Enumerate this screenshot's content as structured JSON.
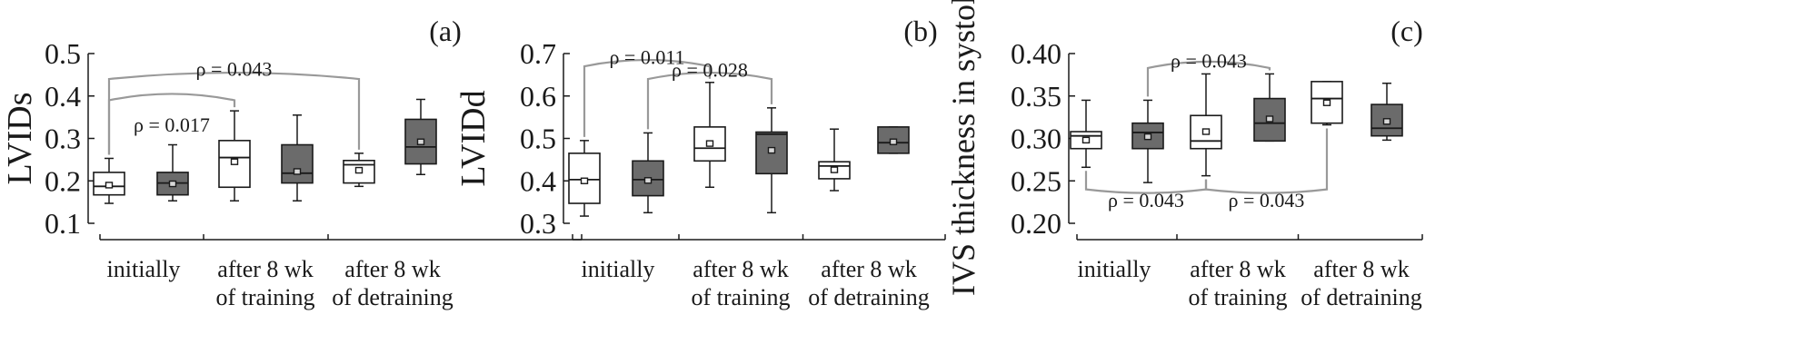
{
  "colors": {
    "open_box": "#ffffff",
    "filled_box": "#6b6b6b",
    "axis": "#1a1a1a",
    "bracket": "#999999"
  },
  "chart_data": [
    {
      "type": "box",
      "panel": "(a)",
      "ylabel": "LVIDs",
      "ylim": [
        0.1,
        0.5
      ],
      "yticks": [
        "0.5",
        "0.4",
        "0.3",
        "0.2",
        "0.1"
      ],
      "yticks_values": [
        0.5,
        0.4,
        0.3,
        0.2,
        0.1
      ],
      "categories": [
        {
          "lines": [
            "initially"
          ]
        },
        {
          "lines": [
            "after 8 wk",
            "of training"
          ]
        },
        {
          "lines": [
            "after 8 wk",
            "of detraining"
          ]
        }
      ],
      "boxes": [
        {
          "group": 0,
          "fill": "open",
          "min": 0.147,
          "q1": 0.167,
          "median": 0.187,
          "q3": 0.22,
          "max": 0.253,
          "mean": 0.19
        },
        {
          "group": 0,
          "fill": "filled",
          "min": 0.153,
          "q1": 0.167,
          "median": 0.195,
          "q3": 0.22,
          "max": 0.285,
          "mean": 0.193
        },
        {
          "group": 1,
          "fill": "open",
          "min": 0.153,
          "q1": 0.185,
          "median": 0.255,
          "q3": 0.295,
          "max": 0.365,
          "mean": 0.245
        },
        {
          "group": 1,
          "fill": "filled",
          "min": 0.153,
          "q1": 0.195,
          "median": 0.218,
          "q3": 0.285,
          "max": 0.355,
          "mean": 0.222
        },
        {
          "group": 2,
          "fill": "open",
          "min": 0.187,
          "q1": 0.195,
          "median": 0.238,
          "q3": 0.248,
          "max": 0.265,
          "mean": 0.225
        },
        {
          "group": 2,
          "fill": "filled",
          "min": 0.215,
          "q1": 0.24,
          "median": 0.28,
          "q3": 0.345,
          "max": 0.392,
          "mean": 0.292
        }
      ],
      "brackets": [
        {
          "label": "ρ = 0.043",
          "from": 0,
          "to": 4,
          "direction": "up",
          "level": 0.44,
          "label_level": 0.465
        },
        {
          "label": "ρ = 0.017",
          "from": 0,
          "to": 2,
          "direction": "up",
          "level": 0.39,
          "label_level": 0.333
        }
      ]
    },
    {
      "type": "box",
      "panel": "(b)",
      "ylabel": "LVIDd",
      "ylim": [
        0.3,
        0.7
      ],
      "yticks": [
        "0.7",
        "0.6",
        "0.5",
        "0.4",
        "0.3"
      ],
      "yticks_values": [
        0.7,
        0.6,
        0.5,
        0.4,
        0.3
      ],
      "categories": [
        {
          "lines": [
            "initially"
          ]
        },
        {
          "lines": [
            "after 8 wk",
            "of training"
          ]
        },
        {
          "lines": [
            "after 8 wk",
            "of detraining"
          ]
        }
      ],
      "boxes": [
        {
          "group": 0,
          "fill": "open",
          "min": 0.317,
          "q1": 0.347,
          "median": 0.403,
          "q3": 0.465,
          "max": 0.495,
          "mean": 0.4
        },
        {
          "group": 0,
          "fill": "filled",
          "min": 0.325,
          "q1": 0.365,
          "median": 0.403,
          "q3": 0.447,
          "max": 0.513,
          "mean": 0.401
        },
        {
          "group": 1,
          "fill": "open",
          "min": 0.385,
          "q1": 0.447,
          "median": 0.477,
          "q3": 0.527,
          "max": 0.632,
          "mean": 0.488
        },
        {
          "group": 1,
          "fill": "filled",
          "min": 0.325,
          "q1": 0.417,
          "median": 0.51,
          "q3": 0.515,
          "max": 0.572,
          "mean": 0.472
        },
        {
          "group": 2,
          "fill": "open",
          "min": 0.377,
          "q1": 0.405,
          "median": 0.435,
          "q3": 0.445,
          "max": 0.522,
          "mean": 0.426
        },
        {
          "group": 2,
          "fill": "filled",
          "min": 0.465,
          "q1": 0.465,
          "median": 0.49,
          "q3": 0.527,
          "max": 0.527,
          "mean": 0.492
        }
      ],
      "brackets": [
        {
          "label": "ρ = 0.011",
          "from": 0,
          "to": 2,
          "direction": "up",
          "level": 0.67,
          "label_level": 0.693
        },
        {
          "label": "ρ = 0.028",
          "from": 1,
          "to": 3,
          "direction": "up",
          "level": 0.64,
          "label_level": 0.663
        }
      ]
    },
    {
      "type": "box",
      "panel": "(c)",
      "ylabel": "IVS thickness in systole",
      "ylim": [
        0.2,
        0.4
      ],
      "yticks": [
        "0.40",
        "0.35",
        "0.30",
        "0.25",
        "0.20"
      ],
      "yticks_values": [
        0.4,
        0.35,
        0.3,
        0.25,
        0.2
      ],
      "categories": [
        {
          "lines": [
            "initially"
          ]
        },
        {
          "lines": [
            "after 8 wk",
            "of training"
          ]
        },
        {
          "lines": [
            "after 8 wk",
            "of detraining"
          ]
        }
      ],
      "boxes": [
        {
          "group": 0,
          "fill": "open",
          "min": 0.266,
          "q1": 0.288,
          "median": 0.303,
          "q3": 0.308,
          "max": 0.345,
          "mean": 0.298
        },
        {
          "group": 0,
          "fill": "filled",
          "min": 0.248,
          "q1": 0.288,
          "median": 0.307,
          "q3": 0.318,
          "max": 0.345,
          "mean": 0.302
        },
        {
          "group": 1,
          "fill": "open",
          "min": 0.256,
          "q1": 0.288,
          "median": 0.297,
          "q3": 0.327,
          "max": 0.376,
          "mean": 0.308
        },
        {
          "group": 1,
          "fill": "filled",
          "min": 0.297,
          "q1": 0.297,
          "median": 0.318,
          "q3": 0.347,
          "max": 0.376,
          "mean": 0.323
        },
        {
          "group": 2,
          "fill": "open",
          "min": 0.316,
          "q1": 0.318,
          "median": 0.347,
          "q3": 0.367,
          "max": 0.367,
          "mean": 0.342
        },
        {
          "group": 2,
          "fill": "filled",
          "min": 0.298,
          "q1": 0.303,
          "median": 0.312,
          "q3": 0.34,
          "max": 0.365,
          "mean": 0.32
        }
      ],
      "brackets": [
        {
          "label": "ρ = 0.043",
          "from": 1,
          "to": 3,
          "direction": "up",
          "level": 0.383,
          "label_level": 0.392
        },
        {
          "label": "ρ = 0.043",
          "from": 0,
          "to": 2,
          "direction": "down",
          "level": 0.24,
          "label_level": 0.228
        },
        {
          "label": "ρ = 0.043",
          "from": 2,
          "to": 4,
          "direction": "down",
          "level": 0.24,
          "label_level": 0.228
        }
      ]
    }
  ]
}
